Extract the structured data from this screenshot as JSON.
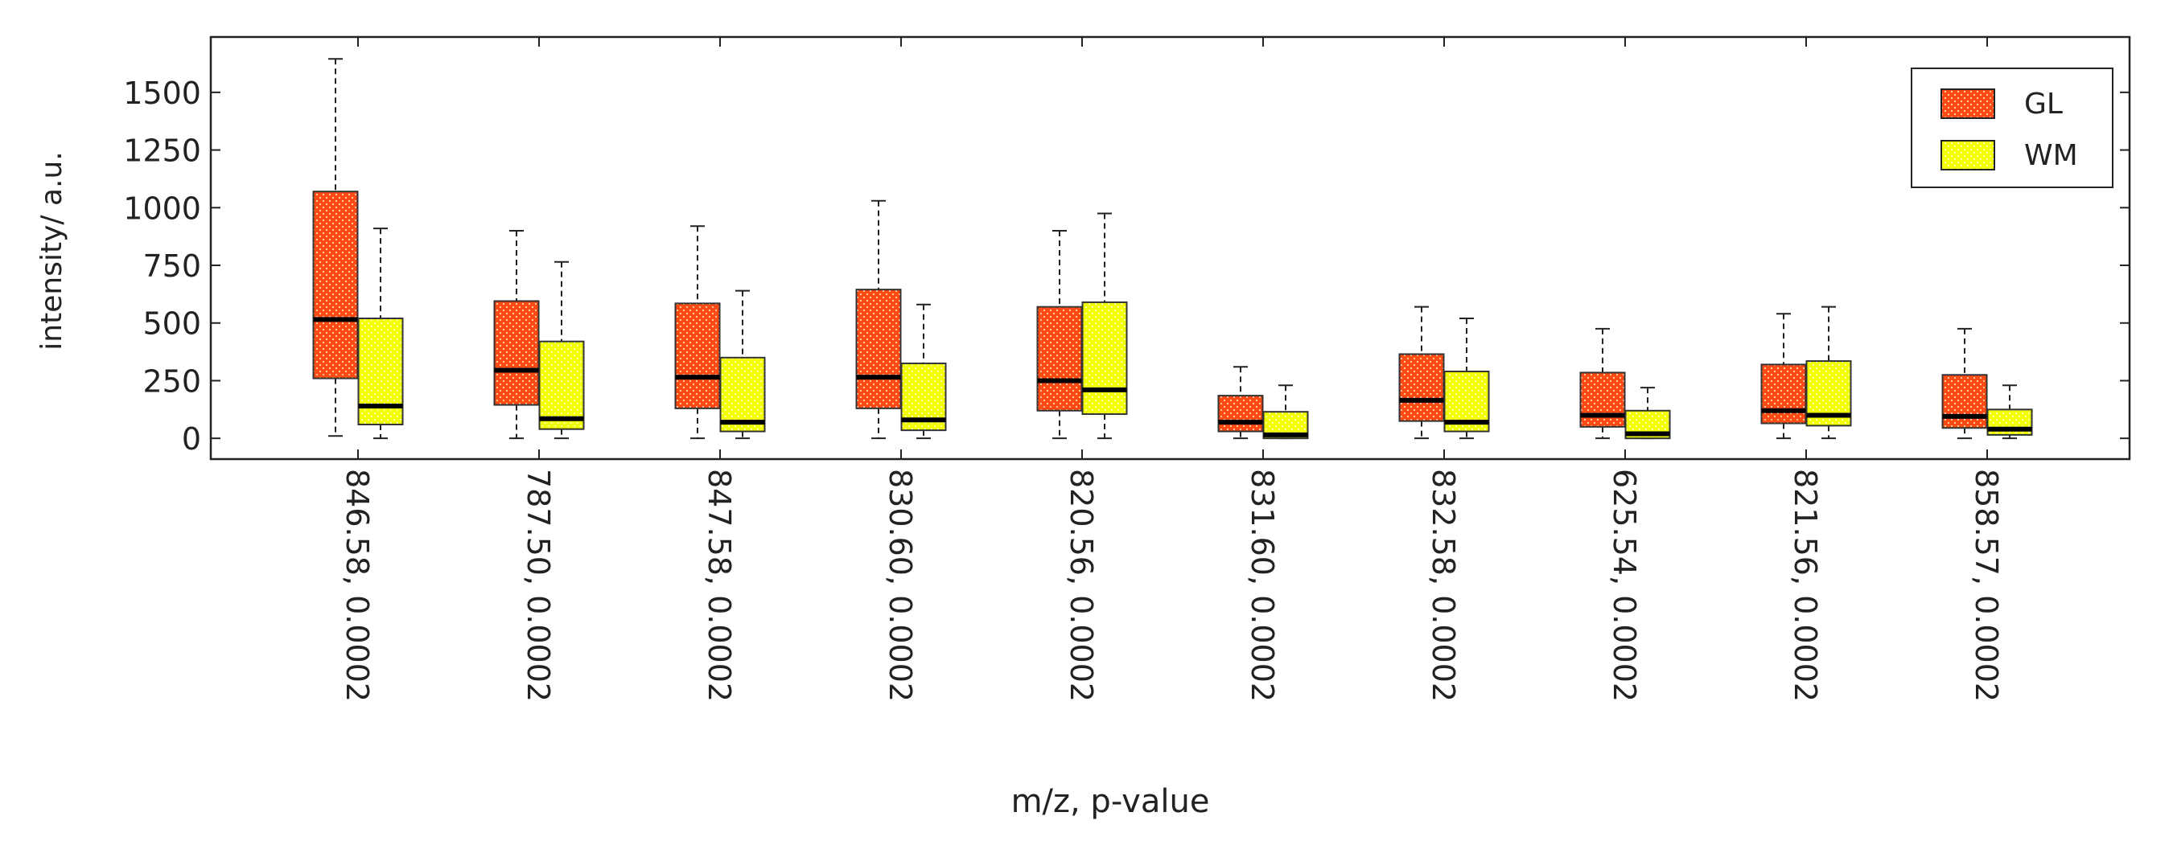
{
  "chart_data": {
    "type": "boxplot",
    "title": "",
    "xlabel": "m/z, p-value",
    "ylabel": "intensity/ a.u.",
    "ylim": [
      -90,
      1740
    ],
    "yticks": [
      0,
      250,
      500,
      750,
      1000,
      1250,
      1500
    ],
    "grid": false,
    "legend_position": "top-right",
    "categories": [
      "846.58, 0.0002",
      "787.50, 0.0002",
      "847.58, 0.0002",
      "830.60, 0.0002",
      "820.56, 0.0002",
      "831.60, 0.0002",
      "832.58, 0.0002",
      "625.54, 0.0002",
      "821.56, 0.0002",
      "858.57, 0.0002"
    ],
    "series": [
      {
        "name": "GL",
        "color": "#ff4a12",
        "boxes": [
          {
            "min": 10,
            "q1": 260,
            "median": 515,
            "q3": 1070,
            "max": 1645
          },
          {
            "min": 0,
            "q1": 145,
            "median": 295,
            "q3": 595,
            "max": 900
          },
          {
            "min": 0,
            "q1": 130,
            "median": 265,
            "q3": 585,
            "max": 920
          },
          {
            "min": 0,
            "q1": 130,
            "median": 265,
            "q3": 645,
            "max": 1030
          },
          {
            "min": 0,
            "q1": 120,
            "median": 250,
            "q3": 570,
            "max": 900
          },
          {
            "min": 0,
            "q1": 30,
            "median": 70,
            "q3": 185,
            "max": 310
          },
          {
            "min": 0,
            "q1": 75,
            "median": 165,
            "q3": 365,
            "max": 570
          },
          {
            "min": 0,
            "q1": 50,
            "median": 100,
            "q3": 285,
            "max": 475
          },
          {
            "min": 0,
            "q1": 65,
            "median": 120,
            "q3": 320,
            "max": 540
          },
          {
            "min": 0,
            "q1": 45,
            "median": 95,
            "q3": 275,
            "max": 475
          }
        ]
      },
      {
        "name": "WM",
        "color": "#f2ff00",
        "boxes": [
          {
            "min": 0,
            "q1": 60,
            "median": 140,
            "q3": 520,
            "max": 910
          },
          {
            "min": 0,
            "q1": 40,
            "median": 85,
            "q3": 420,
            "max": 765
          },
          {
            "min": 0,
            "q1": 30,
            "median": 70,
            "q3": 350,
            "max": 640
          },
          {
            "min": 0,
            "q1": 35,
            "median": 80,
            "q3": 325,
            "max": 580
          },
          {
            "min": 0,
            "q1": 105,
            "median": 210,
            "q3": 590,
            "max": 975
          },
          {
            "min": 0,
            "q1": 0,
            "median": 15,
            "q3": 115,
            "max": 230
          },
          {
            "min": 0,
            "q1": 30,
            "median": 70,
            "q3": 290,
            "max": 520
          },
          {
            "min": 0,
            "q1": 0,
            "median": 20,
            "q3": 120,
            "max": 220
          },
          {
            "min": 0,
            "q1": 55,
            "median": 100,
            "q3": 335,
            "max": 570
          },
          {
            "min": 0,
            "q1": 15,
            "median": 40,
            "q3": 125,
            "max": 230
          }
        ]
      }
    ]
  }
}
